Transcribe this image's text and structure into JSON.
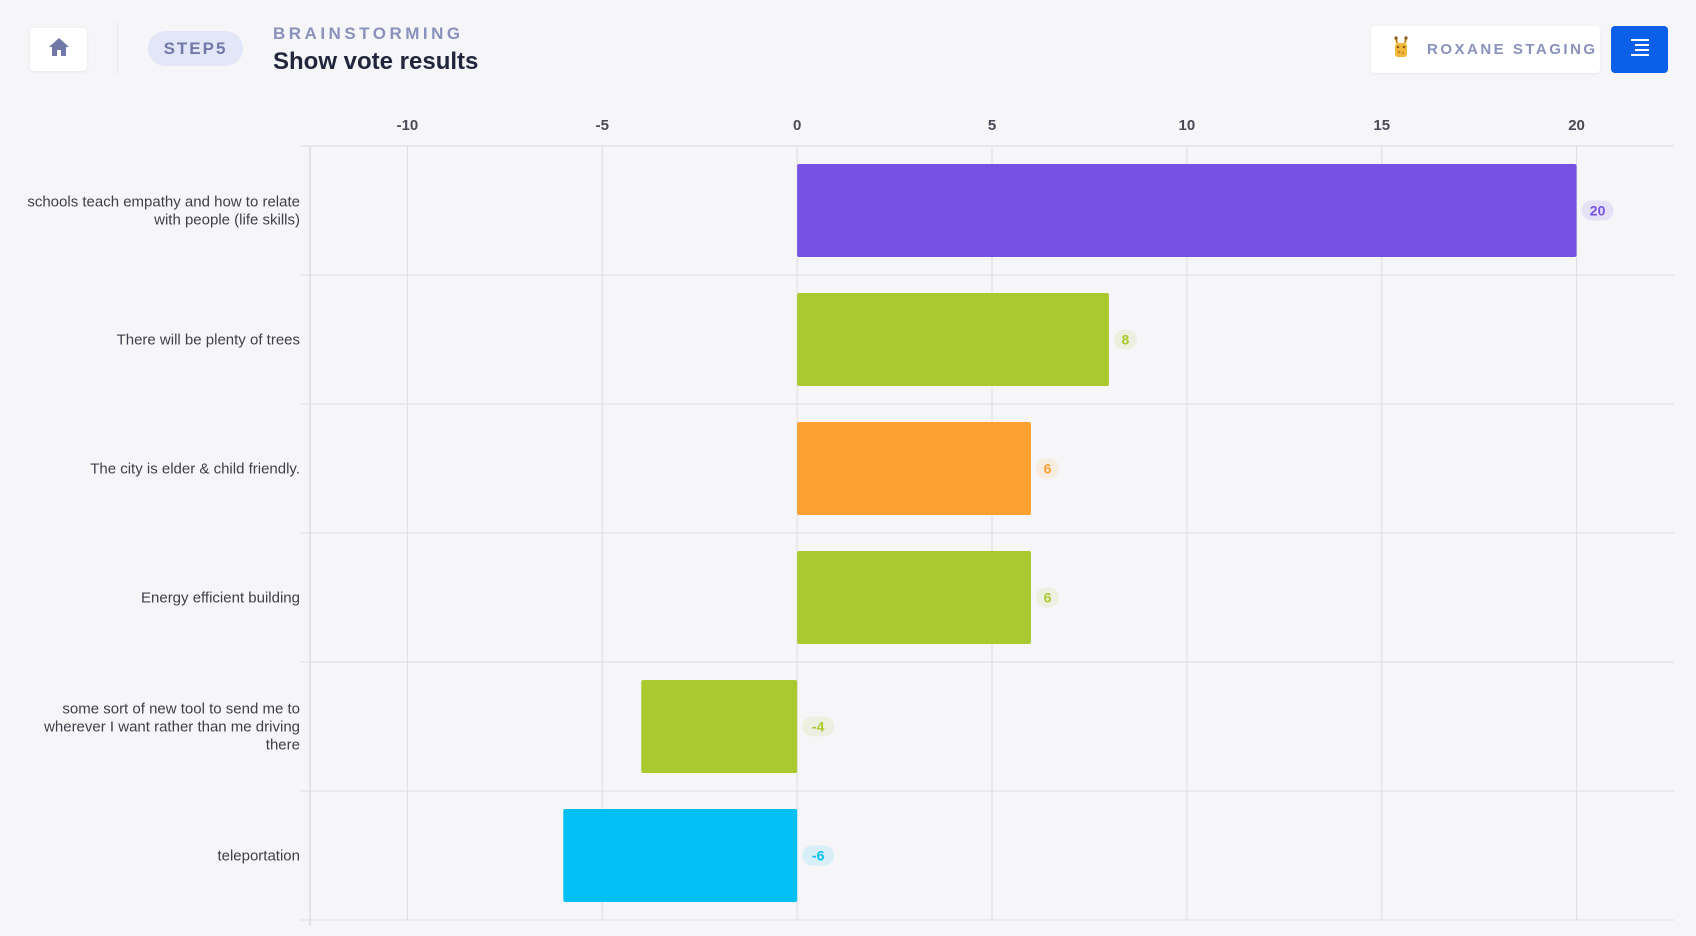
{
  "header": {
    "step": "STEP5",
    "section": "BRAINSTORMING",
    "title": "Show vote results",
    "workspace": "ROXANE STAGING",
    "icons": {
      "home": "home-icon",
      "workspace": "giraffe-avatar-icon",
      "menu": "menu-icon"
    }
  },
  "colors": {
    "accent": "#0b5fe8",
    "purple": "#7652e3",
    "green": "#aac92f",
    "orange": "#ffa131",
    "cyan": "#02bff4"
  },
  "chart_data": {
    "type": "bar",
    "orientation": "horizontal",
    "xlim": [
      -12.5,
      22.5
    ],
    "xticks": [
      -10,
      -5,
      0,
      5,
      10,
      15,
      20
    ],
    "grid": true,
    "categories": [
      "schools teach empathy and how to relate with people (life skills)",
      "There will be plenty of trees",
      "The city is elder & child friendly.",
      "Energy efficient building",
      "some sort of new tool to send me to wherever I want rather than me driving there",
      "teleportation"
    ],
    "category_lines": [
      [
        "schools teach empathy and how to relate",
        "with people (life skills)"
      ],
      [
        "There will be plenty of trees"
      ],
      [
        "The city is elder & child friendly."
      ],
      [
        "Energy efficient building"
      ],
      [
        "some sort of new tool to send me to",
        "wherever I want rather than me driving",
        "there"
      ],
      [
        "teleportation"
      ]
    ],
    "values": [
      20,
      8,
      6,
      6,
      -4,
      -6
    ],
    "bar_colors": [
      "#7652e3",
      "#aac92f",
      "#ffa131",
      "#aac92f",
      "#aac92f",
      "#02bff4"
    ]
  }
}
